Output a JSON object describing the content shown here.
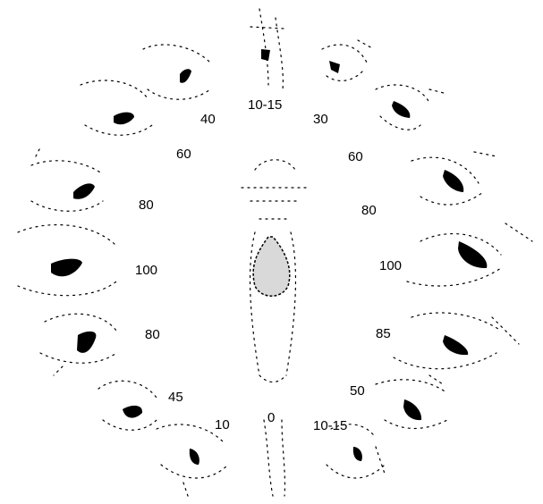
{
  "colors": {
    "ink": "#000000",
    "paper": "#ffffff"
  },
  "labels": {
    "top": "10-15",
    "upper_right_1": "30",
    "upper_right_2": "60",
    "right_1": "80",
    "right_2": "100",
    "right_3": "85",
    "lower_right_1": "50",
    "lower_right_2": "10-15",
    "bottom": "0",
    "lower_left_1": "10",
    "lower_left_2": "45",
    "left_1": "80",
    "left_2": "100",
    "left_3": "80",
    "upper_left_1": "60",
    "upper_left_2": "40"
  }
}
